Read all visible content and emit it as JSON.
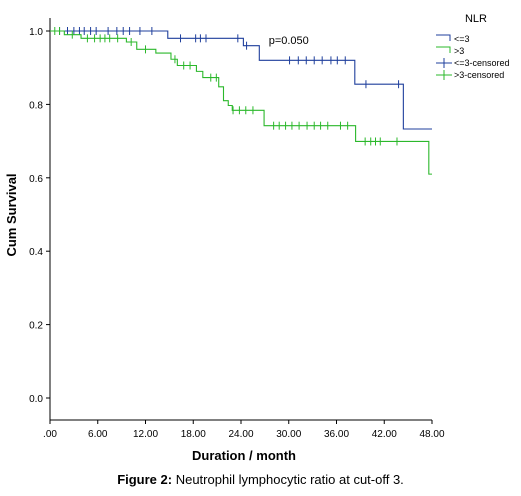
{
  "caption": {
    "label": "Figure 2:",
    "text": " Neutrophil lymphocytic ratio at cut-off 3."
  },
  "chart_data": {
    "type": "line",
    "subtype": "kaplan-meier",
    "title": "",
    "xlabel": "Duration / month",
    "ylabel": "Cum Survival",
    "xlim": [
      0,
      48
    ],
    "ylim": [
      0,
      1.0
    ],
    "x_ticks": [
      0,
      6,
      12,
      18,
      24,
      30,
      36,
      42,
      48
    ],
    "x_tick_labels": [
      ".00",
      "6.00",
      "12.00",
      "18.00",
      "24.00",
      "30.00",
      "36.00",
      "42.00",
      "48.00"
    ],
    "y_ticks": [
      0,
      0.2,
      0.4,
      0.6,
      0.8,
      1.0
    ],
    "y_tick_labels": [
      "0.0",
      "0.2",
      "0.4",
      "0.6",
      "0.8",
      "1.0"
    ],
    "grid": false,
    "legend": {
      "title": "NLR",
      "placement": "right",
      "entries": [
        {
          "label": "<=3",
          "kind": "line",
          "color": "#1f3f9c"
        },
        {
          "label": ">3",
          "kind": "line",
          "color": "#2bb82b"
        },
        {
          "label": "<=3-censored",
          "kind": "censor",
          "color": "#1f3f9c"
        },
        {
          "label": ">3-censored",
          "kind": "censor",
          "color": "#2bb82b"
        }
      ]
    },
    "annotations": [
      {
        "text": "p=0.050",
        "x": 30,
        "y": 0.975
      }
    ],
    "series": [
      {
        "name": "<=3",
        "color": "#1f3f9c",
        "steps": [
          [
            0,
            1.0
          ],
          [
            14.8,
            0.98
          ],
          [
            24.3,
            0.96
          ],
          [
            26.3,
            0.92
          ],
          [
            38.3,
            0.855
          ],
          [
            44.4,
            0.733
          ],
          [
            48,
            0.733
          ]
        ],
        "censored": [
          1.2,
          2.2,
          3.0,
          3.7,
          4.3,
          5.1,
          5.8,
          7.3,
          8.4,
          9.2,
          10.0,
          11.3,
          12.8,
          16.4,
          18.3,
          18.9,
          19.6,
          23.6,
          24.7,
          30.1,
          31.2,
          32.2,
          33.2,
          34.2,
          35.3,
          36.1,
          37.1,
          39.7,
          43.8
        ]
      },
      {
        "name": ">3",
        "color": "#2bb82b",
        "steps": [
          [
            0,
            1.0
          ],
          [
            1.8,
            0.99
          ],
          [
            3.9,
            0.98
          ],
          [
            9.6,
            0.97
          ],
          [
            10.9,
            0.95
          ],
          [
            13.3,
            0.94
          ],
          [
            15.2,
            0.923
          ],
          [
            16.0,
            0.906
          ],
          [
            18.4,
            0.89
          ],
          [
            19.2,
            0.873
          ],
          [
            21.2,
            0.848
          ],
          [
            21.8,
            0.81
          ],
          [
            22.4,
            0.797
          ],
          [
            22.9,
            0.784
          ],
          [
            26.9,
            0.742
          ],
          [
            38.4,
            0.699
          ],
          [
            45.8,
            0.699
          ],
          [
            47.6,
            0.61
          ],
          [
            48,
            0.61
          ]
        ],
        "censored": [
          0.6,
          1.2,
          2.8,
          4.7,
          5.6,
          6.3,
          6.9,
          7.5,
          8.5,
          10.2,
          12.0,
          15.7,
          16.8,
          17.6,
          20.2,
          20.9,
          23.0,
          23.8,
          24.6,
          25.5,
          28.1,
          28.8,
          29.6,
          30.4,
          31.3,
          32.3,
          33.2,
          34.0,
          34.9,
          36.5,
          37.4,
          39.6,
          40.3,
          40.9,
          41.5,
          43.6
        ]
      }
    ]
  }
}
